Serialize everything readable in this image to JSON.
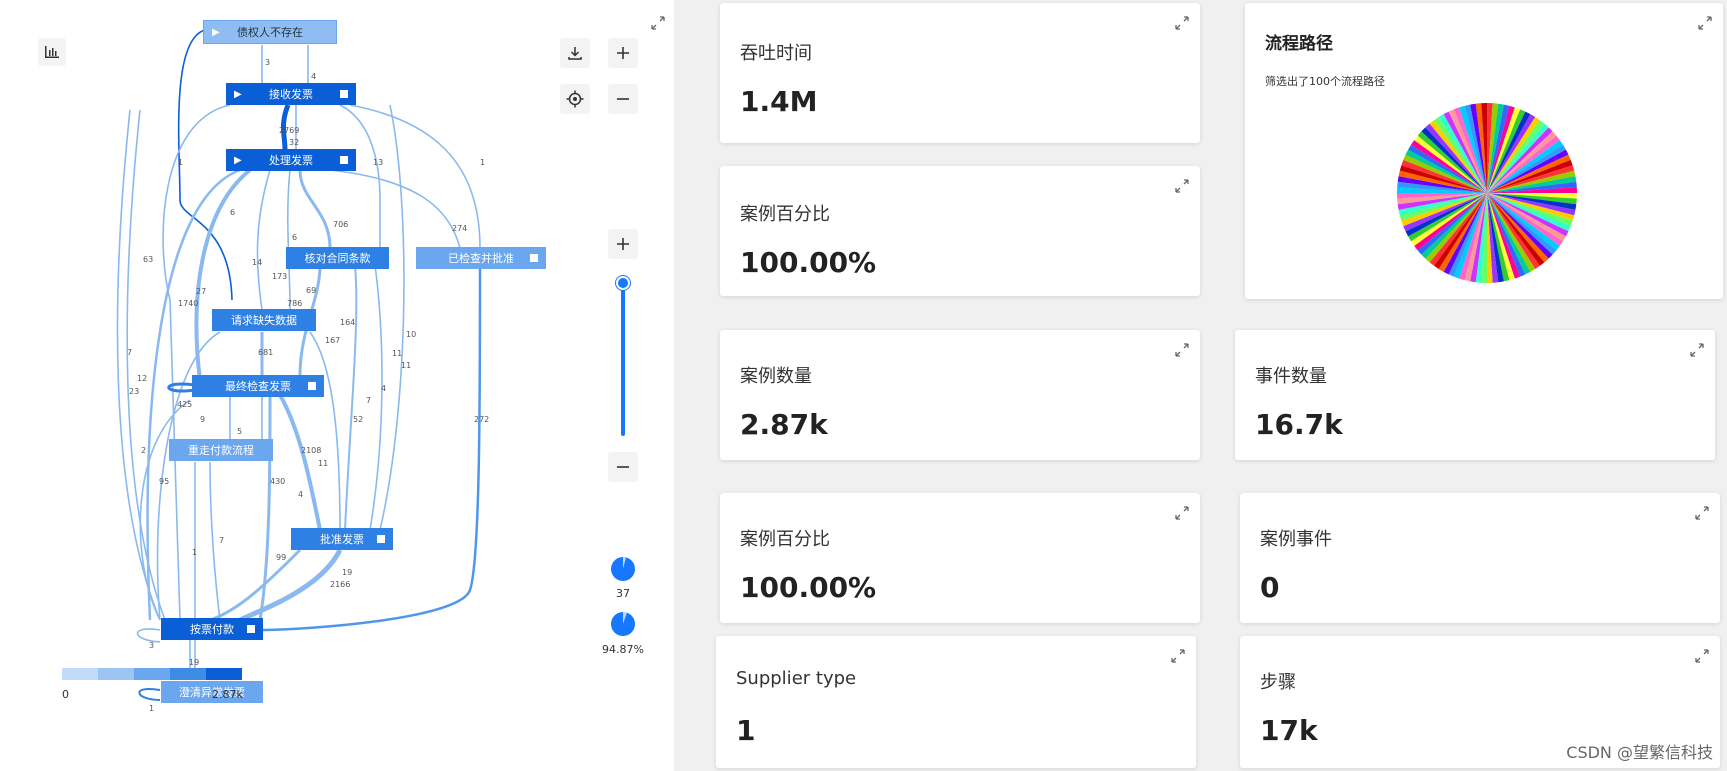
{
  "process_map": {
    "nodes": [
      {
        "id": "n_creditor",
        "label": "债权人不存在",
        "color": "#8fbdf3",
        "start": true,
        "end": false
      },
      {
        "id": "n_receive",
        "label": "接收发票",
        "color": "#0a5fd6",
        "start": true,
        "end": true
      },
      {
        "id": "n_process",
        "label": "处理发票",
        "color": "#0a5fd6",
        "start": true,
        "end": true
      },
      {
        "id": "n_contract",
        "label": "核对合同条款",
        "color": "#2f80e4",
        "start": false,
        "end": false
      },
      {
        "id": "n_checked",
        "label": "已检查并批准",
        "color": "#6aa7ee",
        "start": false,
        "end": true
      },
      {
        "id": "n_request",
        "label": "请求缺失数据",
        "color": "#2f80e4",
        "start": false,
        "end": false
      },
      {
        "id": "n_final",
        "label": "最终检查发票",
        "color": "#2f80e4",
        "start": false,
        "end": true
      },
      {
        "id": "n_rework",
        "label": "重走付款流程",
        "color": "#6aa7ee",
        "start": false,
        "end": false
      },
      {
        "id": "n_approve",
        "label": "批准发票",
        "color": "#2f80e4",
        "start": false,
        "end": true
      },
      {
        "id": "n_pay",
        "label": "按票付款",
        "color": "#0a5fd6",
        "start": false,
        "end": true
      },
      {
        "id": "n_clear",
        "label": "澄清异常发票",
        "color": "#6aa7ee",
        "start": false,
        "end": false
      }
    ],
    "edge_labels": [
      "3",
      "4",
      "2769",
      "32",
      "1",
      "13",
      "1",
      "6",
      "706",
      "274",
      "63",
      "14",
      "173",
      "786",
      "69",
      "6",
      "1740",
      "27",
      "164",
      "167",
      "10",
      "681",
      "11",
      "11",
      "7",
      "12",
      "23",
      "425",
      "9",
      "5",
      "7",
      "4",
      "2108",
      "52",
      "272",
      "11",
      "2",
      "95",
      "430",
      "4",
      "1",
      "7",
      "99",
      "19",
      "2166",
      "3",
      "19",
      "1"
    ],
    "legend": {
      "min": "0",
      "max": "2.87k",
      "colors": [
        "#c2dbf8",
        "#9cc5f4",
        "#6aa7ee",
        "#3f8ce7",
        "#0a5fd6"
      ]
    },
    "slider_stats": {
      "count": "37",
      "percent": "94.87%"
    }
  },
  "cards": {
    "throughput": {
      "label": "吞吐时间",
      "value": "1.4M"
    },
    "case_pct_1": {
      "label": "案例百分比",
      "value": "100.00%"
    },
    "case_count": {
      "label": "案例数量",
      "value": "2.87k"
    },
    "event_count": {
      "label": "事件数量",
      "value": "16.7k"
    },
    "case_pct_2": {
      "label": "案例百分比",
      "value": "100.00%"
    },
    "case_events": {
      "label": "案例事件",
      "value": "0"
    },
    "supplier_type": {
      "label": "Supplier type",
      "value": "1"
    },
    "steps": {
      "label": "步骤",
      "value": "17k"
    }
  },
  "path_card": {
    "title": "流程路径",
    "subtitle": "筛选出了100个流程路径",
    "pie_colors": [
      "#ff3333",
      "#3366ff",
      "#33cc33",
      "#ffcc00",
      "#cc33ff",
      "#00ccff",
      "#ff6600",
      "#99cc00",
      "#ff0099",
      "#0033cc",
      "#66ff66",
      "#ff9999",
      "#3399ff",
      "#cc0000",
      "#00cc99",
      "#ffff33",
      "#9933ff",
      "#33ffcc",
      "#ff66cc",
      "#6600ff"
    ]
  },
  "watermark": "CSDN @望繁信科技",
  "accent": "#1677ff"
}
